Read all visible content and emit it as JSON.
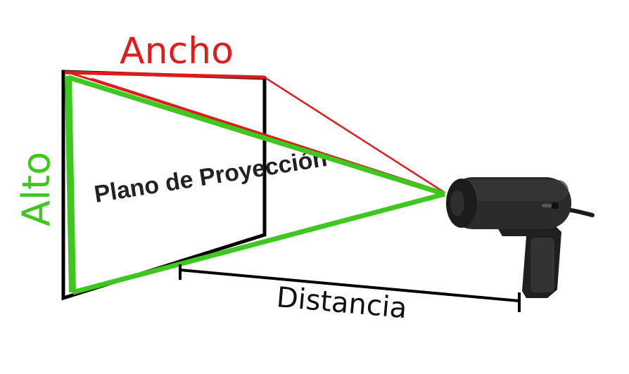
{
  "labels": {
    "width": "Ancho",
    "height": "Alto",
    "distance": "Distancia",
    "plane": "Plano de Proyección"
  },
  "colors": {
    "width": "#e01b1b",
    "height": "#3ec81e",
    "outline": "#000000",
    "camera_body": "#2b2b2b"
  },
  "icons": {
    "camera": "webcam-icon"
  }
}
